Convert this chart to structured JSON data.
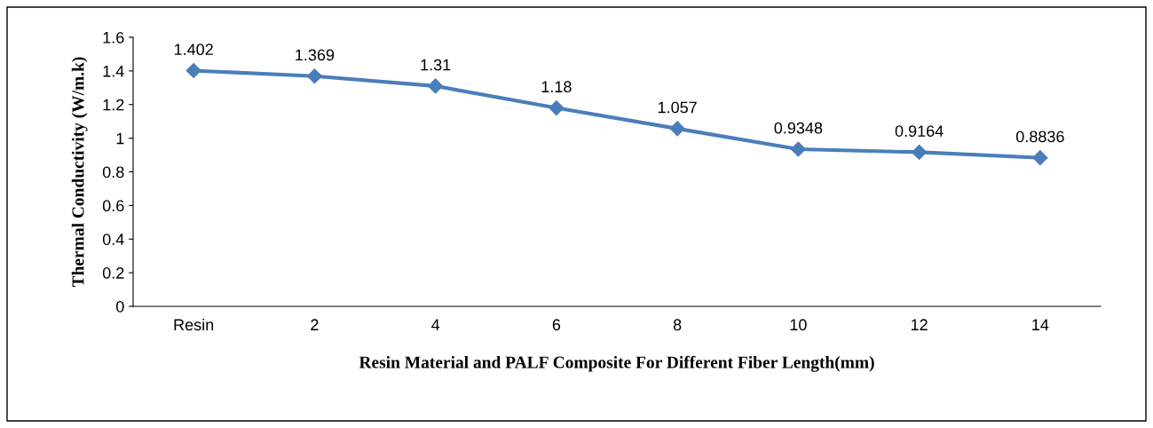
{
  "chart_data": {
    "type": "line",
    "xlabel": "Resin Material and PALF Composite For Different Fiber Length(mm)",
    "ylabel": "Thermal Conductivity (W/m.k)",
    "categories": [
      "Resin",
      "2",
      "4",
      "6",
      "8",
      "10",
      "12",
      "14"
    ],
    "series": [
      {
        "color": "#4a7ebb",
        "values": [
          1.402,
          1.369,
          1.31,
          1.18,
          1.057,
          0.9348,
          0.9164,
          0.8836
        ]
      }
    ],
    "ylim": [
      0,
      1.6
    ],
    "yticks": [
      0,
      0.2,
      0.4,
      0.6,
      0.8,
      1,
      1.2,
      1.4,
      1.6
    ],
    "data_labels": true,
    "marker": "diamond",
    "line_style": "solid",
    "grid": false
  }
}
